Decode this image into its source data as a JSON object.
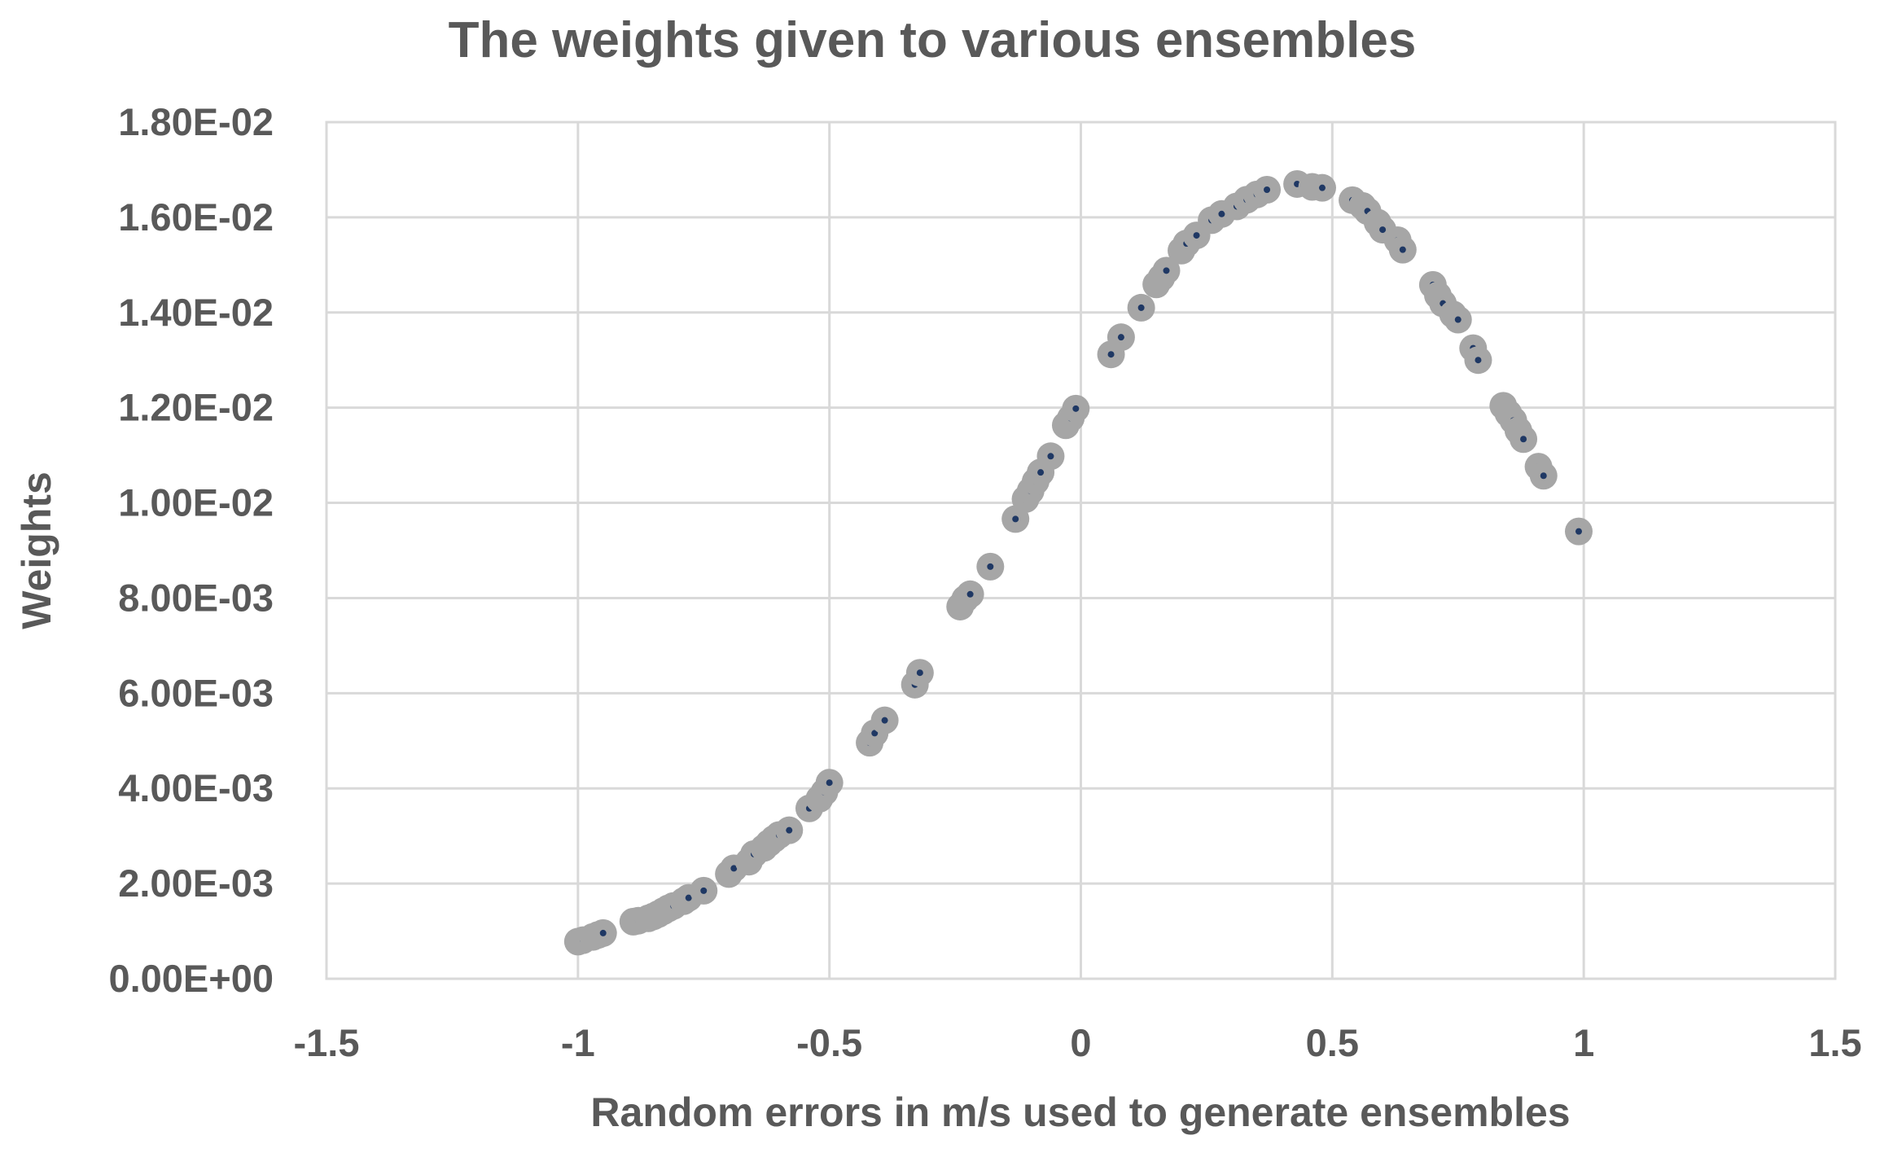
{
  "chart_data": {
    "type": "scatter",
    "title": "The weights given to various ensembles",
    "xlabel": "Random errors in m/s used to generate ensembles",
    "ylabel": "Weights",
    "xlim": [
      -1.5,
      1.5
    ],
    "ylim": [
      0,
      0.018
    ],
    "x_ticks": [
      -1.5,
      -1,
      -0.5,
      0,
      0.5,
      1,
      1.5
    ],
    "x_tick_labels": [
      "-1.5",
      "-1",
      "-0.5",
      "0",
      "0.5",
      "1",
      "1.5"
    ],
    "y_ticks": [
      0,
      0.002,
      0.004,
      0.006,
      0.008,
      0.01,
      0.012,
      0.014,
      0.016,
      0.018
    ],
    "y_tick_labels": [
      "0.00E+00",
      "2.00E-03",
      "4.00E-03",
      "6.00E-03",
      "8.00E-03",
      "1.00E-02",
      "1.20E-02",
      "1.40E-02",
      "1.60E-02",
      "1.80E-02"
    ],
    "grid": true,
    "legend": "none",
    "marker_color": "#a6a6a6",
    "marker_center_color": "#1f3864",
    "gridline_color": "#d9d9d9",
    "x": [
      -1.0,
      -0.99,
      -0.97,
      -0.96,
      -0.95,
      -0.89,
      -0.88,
      -0.86,
      -0.85,
      -0.84,
      -0.83,
      -0.82,
      -0.81,
      -0.79,
      -0.78,
      -0.75,
      -0.7,
      -0.69,
      -0.66,
      -0.65,
      -0.63,
      -0.62,
      -0.61,
      -0.6,
      -0.58,
      -0.54,
      -0.52,
      -0.51,
      -0.5,
      -0.42,
      -0.41,
      -0.39,
      -0.33,
      -0.32,
      -0.24,
      -0.23,
      -0.22,
      -0.18,
      -0.13,
      -0.11,
      -0.1,
      -0.09,
      -0.08,
      -0.06,
      -0.03,
      -0.02,
      -0.01,
      0.06,
      0.08,
      0.12,
      0.15,
      0.16,
      0.17,
      0.2,
      0.21,
      0.23,
      0.26,
      0.28,
      0.31,
      0.33,
      0.35,
      0.37,
      0.43,
      0.46,
      0.48,
      0.54,
      0.56,
      0.57,
      0.59,
      0.6,
      0.63,
      0.64,
      0.7,
      0.71,
      0.72,
      0.74,
      0.75,
      0.78,
      0.79,
      0.84,
      0.85,
      0.86,
      0.87,
      0.88,
      0.91,
      0.92,
      0.99
    ],
    "values": [
      0.00078,
      0.00081,
      0.00088,
      0.00092,
      0.00096,
      0.0012,
      0.00122,
      0.00127,
      0.00131,
      0.00136,
      0.00142,
      0.00148,
      0.00153,
      0.00163,
      0.0017,
      0.00185,
      0.0022,
      0.00232,
      0.00246,
      0.00262,
      0.00275,
      0.00285,
      0.00294,
      0.00302,
      0.00312,
      0.00358,
      0.00378,
      0.00392,
      0.00412,
      0.00496,
      0.00516,
      0.00543,
      0.00618,
      0.00643,
      0.00782,
      0.00798,
      0.00808,
      0.00866,
      0.00966,
      0.01008,
      0.01025,
      0.01045,
      0.01064,
      0.01098,
      0.01163,
      0.01178,
      0.01198,
      0.01312,
      0.01348,
      0.0141,
      0.01459,
      0.01473,
      0.01488,
      0.0153,
      0.01545,
      0.01562,
      0.01594,
      0.01607,
      0.01623,
      0.01637,
      0.01648,
      0.01658,
      0.0167,
      0.01664,
      0.01662,
      0.01636,
      0.01624,
      0.01613,
      0.01589,
      0.01574,
      0.01552,
      0.01532,
      0.01458,
      0.01436,
      0.01419,
      0.01396,
      0.01385,
      0.01325,
      0.013,
      0.01204,
      0.01188,
      0.01173,
      0.01152,
      0.01134,
      0.01076,
      0.01057,
      0.0094
    ]
  }
}
